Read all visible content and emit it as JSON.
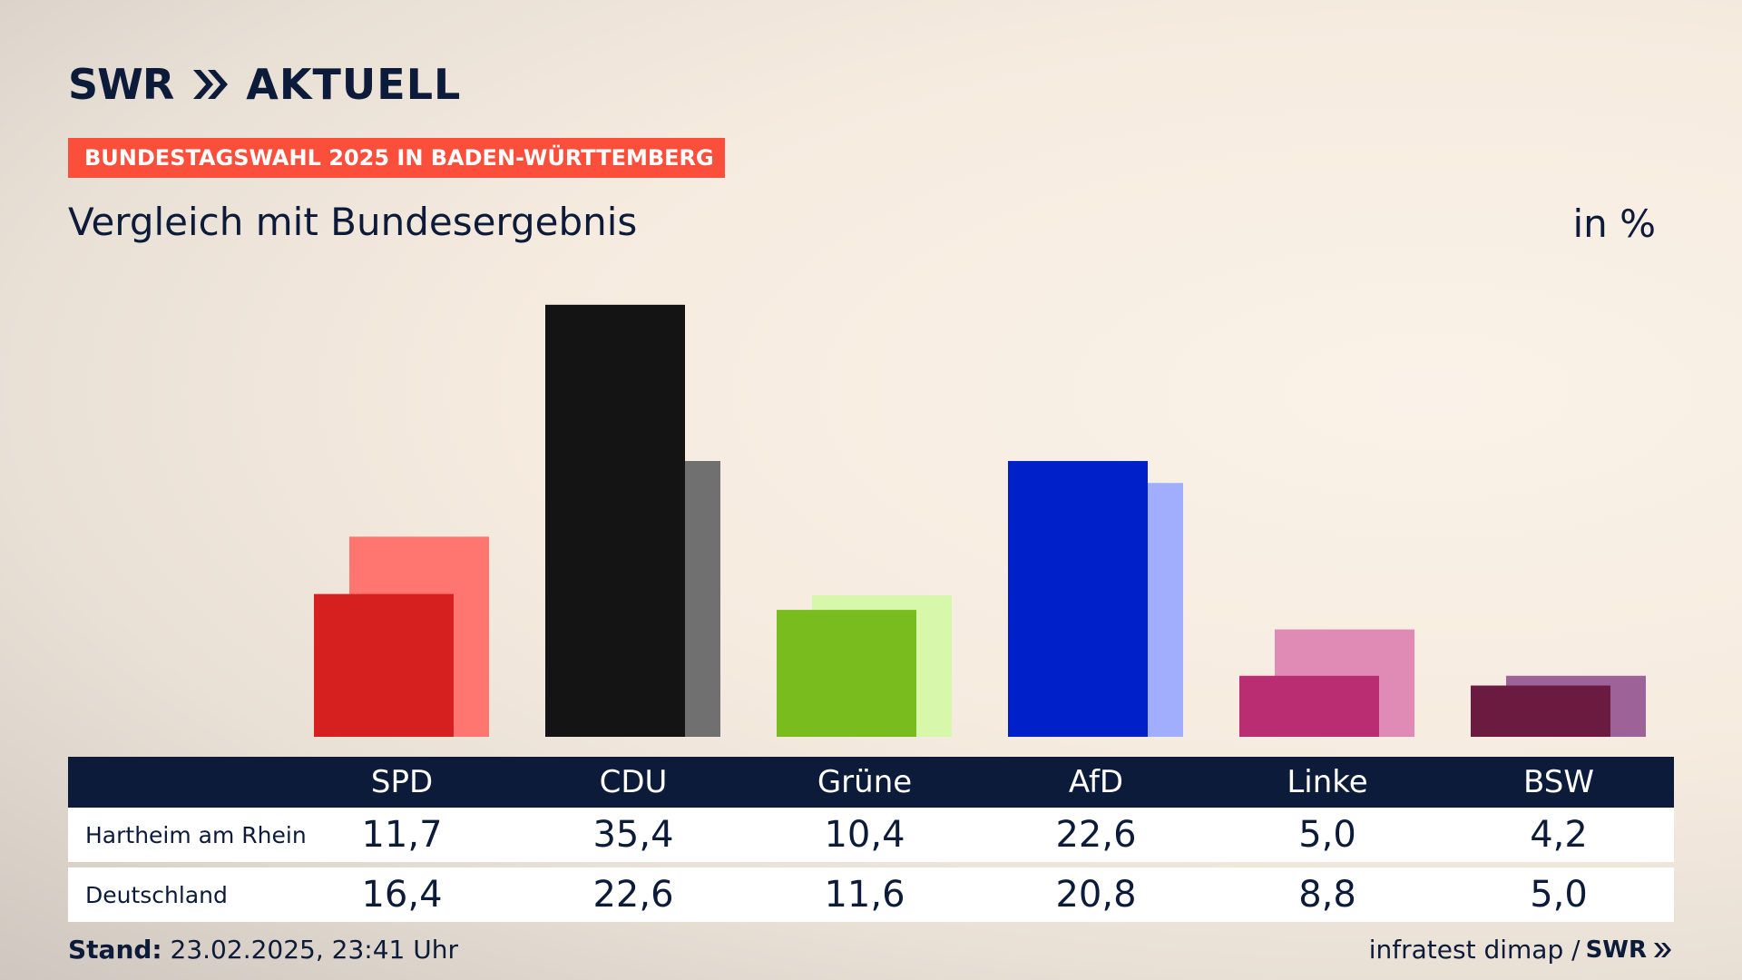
{
  "header": {
    "logo": {
      "swr": "SWR",
      "chevron_icon": "double-chevron-right-icon",
      "aktuell": "AKTUELL"
    },
    "kicker": "BUNDESTAGSWAHL 2025 IN BADEN-WÜRTTEMBERG",
    "subtitle": "Vergleich mit Bundesergebnis",
    "unit": "in %"
  },
  "chart_data": {
    "type": "bar",
    "categories": [
      "SPD",
      "CDU",
      "Grüne",
      "AfD",
      "Linke",
      "BSW"
    ],
    "series": [
      {
        "name": "Hartheim am Rhein",
        "values": [
          11.7,
          35.4,
          10.4,
          22.6,
          5.0,
          4.2
        ],
        "colors": [
          "#d61f1f",
          "#141414",
          "#78bc1e",
          "#0021c9",
          "#bb2d72",
          "#6b1a40"
        ]
      },
      {
        "name": "Deutschland",
        "values": [
          16.4,
          22.6,
          11.6,
          20.8,
          8.8,
          5.0
        ],
        "colors": [
          "#ff7570",
          "#707070",
          "#d7f7ab",
          "#a1aefd",
          "#e08bb6",
          "#9d6399"
        ]
      }
    ],
    "title": "Vergleich mit Bundesergebnis",
    "unit": "in %",
    "grid": false,
    "legend": "table below chart"
  },
  "table": {
    "headers": [
      "SPD",
      "CDU",
      "Grüne",
      "AfD",
      "Linke",
      "BSW"
    ],
    "rows": [
      {
        "label": "Hartheim am Rhein",
        "values": [
          "11,7",
          "35,4",
          "10,4",
          "22,6",
          "5,0",
          "4,2"
        ]
      },
      {
        "label": "Deutschland",
        "values": [
          "16,4",
          "22,6",
          "11,6",
          "20,8",
          "8,8",
          "5,0"
        ]
      }
    ]
  },
  "footer": {
    "stand_label": "Stand:",
    "stand_value": "23.02.2025, 23:41 Uhr",
    "source": "infratest dimap /",
    "source_logo": "SWR"
  }
}
